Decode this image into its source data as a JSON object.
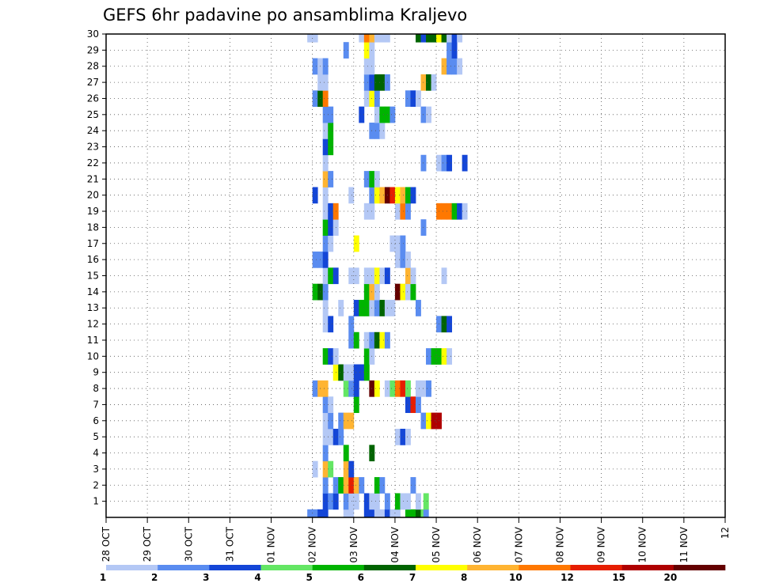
{
  "chart_data": {
    "type": "heatmap",
    "title": "GEFS 6hr padavine po ansamblima Kraljevo",
    "xlabel": "",
    "ylabel": "",
    "x_ticks": [
      "28 OCT",
      "29 OCT",
      "30 OCT",
      "31 OCT",
      "01 NOV",
      "02 NOV",
      "03 NOV",
      "04 NOV",
      "05 NOV",
      "06 NOV",
      "07 NOV",
      "08 NOV",
      "09 NOV",
      "10 NOV",
      "11 NOV",
      "12"
    ],
    "y_ticks": [
      "1",
      "2",
      "3",
      "4",
      "5",
      "6",
      "7",
      "8",
      "9",
      "10",
      "11",
      "12",
      "13",
      "14",
      "15",
      "16",
      "17",
      "18",
      "19",
      "20",
      "21",
      "22",
      "23",
      "24",
      "25",
      "26",
      "27",
      "28",
      "29",
      "30"
    ],
    "members": [
      0,
      30
    ],
    "grid": true,
    "time_step_hours": 6,
    "legend": {
      "placement": "bottom",
      "labels": [
        "1",
        "2",
        "3",
        "4",
        "5",
        "6",
        "7",
        "8",
        "10",
        "12",
        "15",
        "20"
      ],
      "colors": [
        "#b4c8f5",
        "#5a8cf0",
        "#1446d7",
        "#64e664",
        "#00b400",
        "#006400",
        "#ffff00",
        "#ffb432",
        "#ff7800",
        "#e61e00",
        "#af0000",
        "#640000"
      ]
    },
    "cells": [
      [
        0,
        19.5,
        "b"
      ],
      [
        0,
        20,
        "b"
      ],
      [
        0,
        20.5,
        "c"
      ],
      [
        0,
        21,
        "c"
      ],
      [
        0,
        23,
        "a"
      ],
      [
        0,
        23.5,
        "a"
      ],
      [
        0,
        25,
        "c"
      ],
      [
        0,
        25.5,
        "c"
      ],
      [
        0,
        26,
        "a"
      ],
      [
        0,
        26.5,
        "a"
      ],
      [
        0,
        27,
        "c"
      ],
      [
        0,
        27.5,
        "a"
      ],
      [
        0,
        28,
        "a"
      ],
      [
        0,
        29,
        "e"
      ],
      [
        0,
        29.5,
        "e"
      ],
      [
        0,
        30,
        "f"
      ],
      [
        0,
        30.5,
        "d"
      ],
      [
        0,
        30.75,
        "b"
      ],
      [
        1,
        21,
        "c"
      ],
      [
        1,
        21.5,
        "b"
      ],
      [
        1,
        22,
        "c"
      ],
      [
        1,
        23,
        "b"
      ],
      [
        1,
        23.5,
        "a"
      ],
      [
        1,
        24,
        "a"
      ],
      [
        1,
        25,
        "c"
      ],
      [
        1,
        25.5,
        "a"
      ],
      [
        1,
        26,
        "a"
      ],
      [
        1,
        27,
        "b"
      ],
      [
        1,
        28,
        "e"
      ],
      [
        1,
        28.5,
        "a"
      ],
      [
        1,
        29,
        "a"
      ],
      [
        1,
        30,
        "a"
      ],
      [
        1,
        30.75,
        "d"
      ],
      [
        2,
        21,
        "b"
      ],
      [
        2,
        22,
        "b"
      ],
      [
        2,
        22.5,
        "e"
      ],
      [
        2,
        23,
        "h"
      ],
      [
        2,
        23.5,
        "j"
      ],
      [
        2,
        24,
        "h"
      ],
      [
        2,
        24.5,
        "b"
      ],
      [
        2,
        26,
        "e"
      ],
      [
        2,
        26.5,
        "b"
      ],
      [
        2,
        29.5,
        "b"
      ],
      [
        3,
        20,
        "a"
      ],
      [
        3,
        21,
        "h"
      ],
      [
        3,
        21.5,
        "d"
      ],
      [
        3,
        23,
        "h"
      ],
      [
        3,
        23.5,
        "c"
      ],
      [
        4,
        21,
        "b"
      ],
      [
        4,
        23,
        "e"
      ],
      [
        4,
        25.5,
        "f"
      ],
      [
        5,
        21,
        "a"
      ],
      [
        5,
        21.5,
        "a"
      ],
      [
        5,
        22,
        "c"
      ],
      [
        5,
        22.5,
        "b"
      ],
      [
        5,
        28,
        "a"
      ],
      [
        5,
        28.5,
        "c"
      ],
      [
        5,
        29,
        "a"
      ],
      [
        6,
        21,
        "a"
      ],
      [
        6,
        21.5,
        "b"
      ],
      [
        6,
        22.5,
        "b"
      ],
      [
        6,
        23,
        "h"
      ],
      [
        6,
        23.5,
        "h"
      ],
      [
        6,
        30.5,
        "b"
      ],
      [
        6,
        31,
        "g"
      ],
      [
        6,
        31.5,
        "k"
      ],
      [
        6,
        32,
        "k"
      ],
      [
        7,
        21,
        "b"
      ],
      [
        7,
        21.5,
        "a"
      ],
      [
        7,
        24,
        "e"
      ],
      [
        7,
        29,
        "c"
      ],
      [
        7,
        29.5,
        "j"
      ],
      [
        7,
        30,
        "b"
      ],
      [
        8,
        20,
        "b"
      ],
      [
        8,
        20.5,
        "h"
      ],
      [
        8,
        21,
        "h"
      ],
      [
        8,
        23,
        "d"
      ],
      [
        8,
        23.5,
        "b"
      ],
      [
        8,
        24,
        "c"
      ],
      [
        8,
        25.5,
        "l"
      ],
      [
        8,
        26,
        "g"
      ],
      [
        8,
        27,
        "a"
      ],
      [
        8,
        27.5,
        "d"
      ],
      [
        8,
        28,
        "i"
      ],
      [
        8,
        28.5,
        "j"
      ],
      [
        8,
        29,
        "d"
      ],
      [
        8,
        30,
        "a"
      ],
      [
        8,
        30.5,
        "a"
      ],
      [
        8,
        31,
        "b"
      ],
      [
        9,
        22,
        "g"
      ],
      [
        9,
        22.5,
        "f"
      ],
      [
        9,
        23,
        "a"
      ],
      [
        9,
        23.5,
        "a"
      ],
      [
        9,
        24,
        "c"
      ],
      [
        9,
        24.5,
        "c"
      ],
      [
        9,
        25,
        "e"
      ],
      [
        10,
        21,
        "e"
      ],
      [
        10,
        21.5,
        "c"
      ],
      [
        10,
        22,
        "a"
      ],
      [
        10,
        25,
        "e"
      ],
      [
        10,
        25.5,
        "a"
      ],
      [
        10,
        31,
        "b"
      ],
      [
        10,
        31.5,
        "e"
      ],
      [
        10,
        32,
        "e"
      ],
      [
        10,
        32.5,
        "g"
      ],
      [
        10,
        33,
        "a"
      ],
      [
        11,
        23.5,
        "b"
      ],
      [
        11,
        24,
        "e"
      ],
      [
        11,
        25,
        "a"
      ],
      [
        11,
        25.5,
        "b"
      ],
      [
        11,
        26,
        "f"
      ],
      [
        11,
        26.5,
        "g"
      ],
      [
        11,
        27,
        "b"
      ],
      [
        12,
        21,
        "a"
      ],
      [
        12,
        21.5,
        "c"
      ],
      [
        12,
        23.5,
        "b"
      ],
      [
        12,
        32,
        "b"
      ],
      [
        12,
        32.5,
        "f"
      ],
      [
        12,
        33,
        "c"
      ],
      [
        13,
        21,
        "a"
      ],
      [
        13,
        22.5,
        "a"
      ],
      [
        13,
        24,
        "c"
      ],
      [
        13,
        24.5,
        "e"
      ],
      [
        13,
        25,
        "e"
      ],
      [
        13,
        25.5,
        "a"
      ],
      [
        13,
        26,
        "b"
      ],
      [
        13,
        26.5,
        "f"
      ],
      [
        13,
        27,
        "a"
      ],
      [
        13,
        27.5,
        "a"
      ],
      [
        13,
        30,
        "b"
      ],
      [
        14,
        20,
        "e"
      ],
      [
        14,
        20.5,
        "f"
      ],
      [
        14,
        21,
        "b"
      ],
      [
        14,
        25,
        "e"
      ],
      [
        14,
        25.5,
        "h"
      ],
      [
        14,
        26,
        "a"
      ],
      [
        14,
        28,
        "l"
      ],
      [
        14,
        28.5,
        "g"
      ],
      [
        14,
        29,
        "a"
      ],
      [
        14,
        29.5,
        "e"
      ],
      [
        15,
        21,
        "a"
      ],
      [
        15,
        21.5,
        "e"
      ],
      [
        15,
        22,
        "c"
      ],
      [
        15,
        23.5,
        "a"
      ],
      [
        15,
        24,
        "a"
      ],
      [
        15,
        25,
        "a"
      ],
      [
        15,
        25.5,
        "a"
      ],
      [
        15,
        26,
        "g"
      ],
      [
        15,
        26.5,
        "a"
      ],
      [
        15,
        27,
        "c"
      ],
      [
        15,
        29,
        "h"
      ],
      [
        15,
        29.5,
        "a"
      ],
      [
        15,
        32.5,
        "a"
      ],
      [
        16,
        20,
        "b"
      ],
      [
        16,
        20.5,
        "b"
      ],
      [
        16,
        21,
        "c"
      ],
      [
        16,
        28,
        "a"
      ],
      [
        16,
        28.5,
        "b"
      ],
      [
        16,
        29,
        "a"
      ],
      [
        17,
        21,
        "b"
      ],
      [
        17,
        21.5,
        "a"
      ],
      [
        17,
        24,
        "g"
      ],
      [
        17,
        27.5,
        "a"
      ],
      [
        17,
        28,
        "a"
      ],
      [
        17,
        28.5,
        "b"
      ],
      [
        18,
        21,
        "e"
      ],
      [
        18,
        21.5,
        "c"
      ],
      [
        18,
        22,
        "a"
      ],
      [
        18,
        30.5,
        "b"
      ],
      [
        19,
        21,
        "a"
      ],
      [
        19,
        21.5,
        "c"
      ],
      [
        19,
        22,
        "i"
      ],
      [
        19,
        25,
        "a"
      ],
      [
        19,
        25.5,
        "a"
      ],
      [
        19,
        28,
        "a"
      ],
      [
        19,
        28.5,
        "i"
      ],
      [
        19,
        29,
        "b"
      ],
      [
        19,
        32,
        "i"
      ],
      [
        19,
        32.5,
        "i"
      ],
      [
        19,
        33,
        "i"
      ],
      [
        19,
        33.5,
        "e"
      ],
      [
        19,
        34,
        "c"
      ],
      [
        19,
        34.5,
        "a"
      ],
      [
        20,
        20,
        "c"
      ],
      [
        20,
        21,
        "a"
      ],
      [
        20,
        23.5,
        "a"
      ],
      [
        20,
        25.5,
        "b"
      ],
      [
        20,
        26,
        "g"
      ],
      [
        20,
        26.5,
        "h"
      ],
      [
        20,
        27,
        "l"
      ],
      [
        20,
        27.5,
        "j"
      ],
      [
        20,
        28,
        "g"
      ],
      [
        20,
        28.5,
        "h"
      ],
      [
        20,
        29,
        "e"
      ],
      [
        20,
        29.5,
        "c"
      ],
      [
        21,
        21,
        "h"
      ],
      [
        21,
        21.5,
        "b"
      ],
      [
        21,
        25,
        "b"
      ],
      [
        21,
        25.5,
        "e"
      ],
      [
        21,
        26,
        "a"
      ],
      [
        22,
        21,
        "a"
      ],
      [
        22,
        30.5,
        "b"
      ],
      [
        22,
        32,
        "a"
      ],
      [
        22,
        32.5,
        "b"
      ],
      [
        22,
        33,
        "c"
      ],
      [
        22,
        34.5,
        "c"
      ],
      [
        23,
        21,
        "c"
      ],
      [
        23,
        21.5,
        "e"
      ],
      [
        24,
        21,
        "a"
      ],
      [
        24,
        21.5,
        "e"
      ],
      [
        24,
        25.5,
        "b"
      ],
      [
        24,
        26,
        "b"
      ],
      [
        24,
        26.5,
        "a"
      ],
      [
        25,
        21,
        "b"
      ],
      [
        25,
        21.5,
        "b"
      ],
      [
        25,
        24.5,
        "c"
      ],
      [
        25,
        26,
        "a"
      ],
      [
        25,
        26.5,
        "e"
      ],
      [
        25,
        27,
        "e"
      ],
      [
        25,
        27.5,
        "b"
      ],
      [
        25,
        30.5,
        "b"
      ],
      [
        25,
        31,
        "a"
      ],
      [
        26,
        20,
        "b"
      ],
      [
        26,
        20.5,
        "f"
      ],
      [
        26,
        21,
        "i"
      ],
      [
        26,
        25,
        "a"
      ],
      [
        26,
        25.5,
        "g"
      ],
      [
        26,
        26,
        "b"
      ],
      [
        26,
        29,
        "b"
      ],
      [
        26,
        29.5,
        "c"
      ],
      [
        26,
        30,
        "a"
      ],
      [
        27,
        20.5,
        "a"
      ],
      [
        27,
        21,
        "a"
      ],
      [
        27,
        25,
        "b"
      ],
      [
        27,
        25.5,
        "c"
      ],
      [
        27,
        26,
        "f"
      ],
      [
        27,
        26.5,
        "f"
      ],
      [
        27,
        27,
        "b"
      ],
      [
        27,
        30.5,
        "h"
      ],
      [
        27,
        31,
        "f"
      ],
      [
        27,
        31.5,
        "a"
      ],
      [
        28,
        20,
        "b"
      ],
      [
        28,
        20.5,
        "a"
      ],
      [
        28,
        21,
        "b"
      ],
      [
        28,
        25,
        "a"
      ],
      [
        28,
        25.5,
        "a"
      ],
      [
        28,
        32.5,
        "h"
      ],
      [
        28,
        33,
        "b"
      ],
      [
        28,
        33.5,
        "b"
      ],
      [
        28,
        34,
        "a"
      ],
      [
        29,
        23,
        "b"
      ],
      [
        29,
        25,
        "g"
      ],
      [
        29,
        25.5,
        "a"
      ],
      [
        29,
        33,
        "b"
      ],
      [
        29,
        33.5,
        "c"
      ],
      [
        30,
        19.5,
        "a"
      ],
      [
        30,
        20,
        "a"
      ],
      [
        30,
        24.5,
        "a"
      ],
      [
        30,
        25,
        "i"
      ],
      [
        30,
        25.5,
        "h"
      ],
      [
        30,
        26,
        "a"
      ],
      [
        30,
        26.5,
        "a"
      ],
      [
        30,
        27,
        "a"
      ],
      [
        30,
        30,
        "f"
      ],
      [
        30,
        30.5,
        "c"
      ],
      [
        30,
        31,
        "f"
      ],
      [
        30,
        31.5,
        "f"
      ],
      [
        30,
        32,
        "g"
      ],
      [
        30,
        32.5,
        "f"
      ],
      [
        30,
        33,
        "a"
      ],
      [
        30,
        33.5,
        "c"
      ],
      [
        30,
        34,
        "a"
      ]
    ]
  }
}
